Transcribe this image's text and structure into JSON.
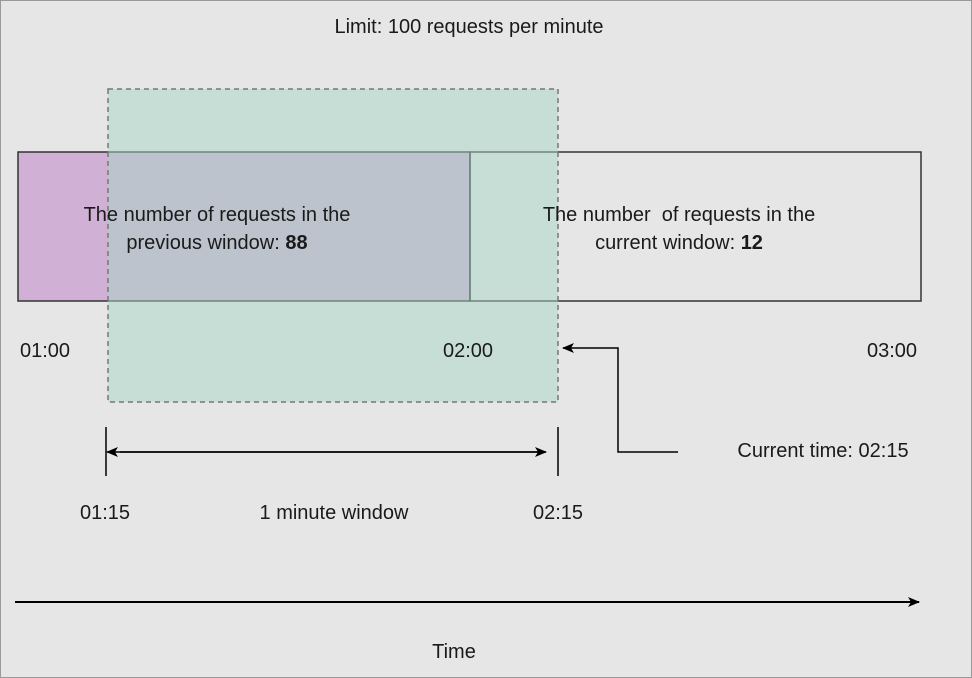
{
  "title": "Limit: 100 requests per minute",
  "previous_window": {
    "line1": "The number of requests in the",
    "line2": "previous window: ",
    "count": "88"
  },
  "current_window": {
    "line1": "The number  of requests in the",
    "line2": "current window: ",
    "count": "12"
  },
  "timeline_labels": [
    "01:00",
    "02:00",
    "03:00"
  ],
  "current_time": "Current time: 02:15",
  "window": {
    "start": "01:15",
    "label": "1 minute window",
    "end": "02:15"
  },
  "axis_label": "Time"
}
